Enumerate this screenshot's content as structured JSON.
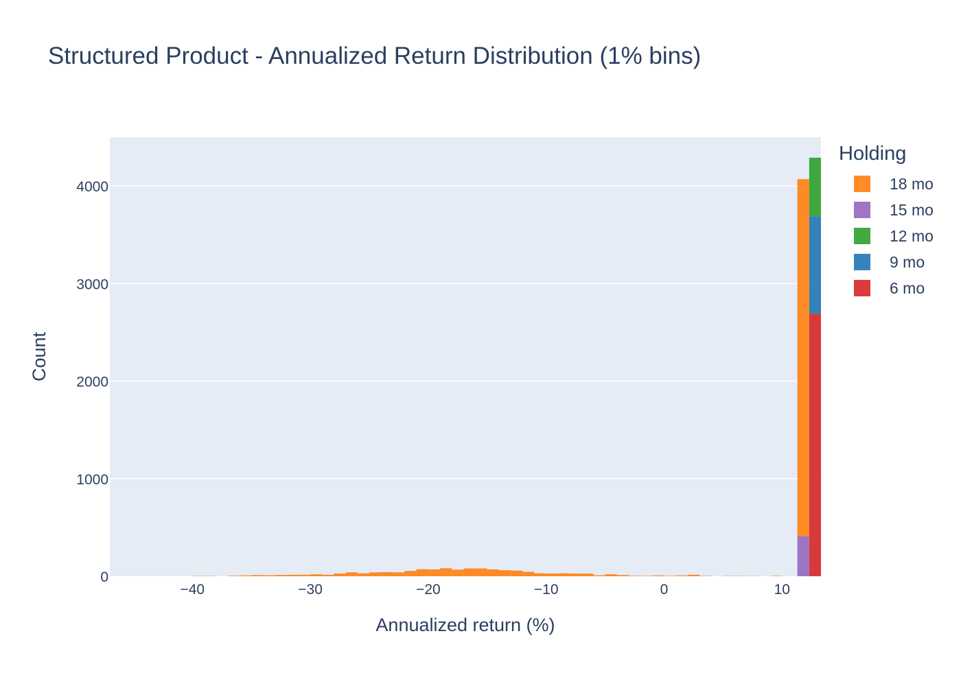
{
  "chart_data": {
    "type": "bar",
    "title": "Structured Product - Annualized Return Distribution (1% bins)",
    "xlabel": "Annualized return (%)",
    "ylabel": "Count",
    "xlim": [
      -47,
      13.3
    ],
    "ylim": [
      0,
      4500
    ],
    "x_ticks": [
      "−40",
      "−30",
      "−20",
      "−10",
      "0",
      "10"
    ],
    "x_tick_values": [
      -40,
      -30,
      -20,
      -10,
      0,
      10
    ],
    "y_ticks": [
      "0",
      "1000",
      "2000",
      "3000",
      "4000"
    ],
    "y_tick_values": [
      0,
      1000,
      2000,
      3000,
      4000
    ],
    "grid": true,
    "barmode": "stack",
    "bin_width": 1,
    "legend": {
      "title": "Holding",
      "position": "right"
    },
    "series": [
      {
        "name": "18 mo",
        "color": "#ff7f0e",
        "bins": [
          {
            "x0": -40,
            "count": 3
          },
          {
            "x0": -39,
            "count": 3
          },
          {
            "x0": -37,
            "count": 5
          },
          {
            "x0": -36,
            "count": 8
          },
          {
            "x0": -35,
            "count": 12
          },
          {
            "x0": -34,
            "count": 10
          },
          {
            "x0": -33,
            "count": 13
          },
          {
            "x0": -32,
            "count": 15
          },
          {
            "x0": -31,
            "count": 15
          },
          {
            "x0": -30,
            "count": 20
          },
          {
            "x0": -29,
            "count": 15
          },
          {
            "x0": -28,
            "count": 28
          },
          {
            "x0": -27,
            "count": 40
          },
          {
            "x0": -26,
            "count": 30
          },
          {
            "x0": -25,
            "count": 40
          },
          {
            "x0": -24,
            "count": 42
          },
          {
            "x0": -23,
            "count": 40
          },
          {
            "x0": -22,
            "count": 55
          },
          {
            "x0": -21,
            "count": 72
          },
          {
            "x0": -20,
            "count": 70
          },
          {
            "x0": -19,
            "count": 82
          },
          {
            "x0": -18,
            "count": 68
          },
          {
            "x0": -17,
            "count": 80
          },
          {
            "x0": -16,
            "count": 80
          },
          {
            "x0": -15,
            "count": 70
          },
          {
            "x0": -14,
            "count": 62
          },
          {
            "x0": -13,
            "count": 58
          },
          {
            "x0": -12,
            "count": 45
          },
          {
            "x0": -11,
            "count": 30
          },
          {
            "x0": -10,
            "count": 28
          },
          {
            "x0": -9,
            "count": 30
          },
          {
            "x0": -8,
            "count": 28
          },
          {
            "x0": -7,
            "count": 27
          },
          {
            "x0": -6,
            "count": 10
          },
          {
            "x0": -5,
            "count": 20
          },
          {
            "x0": -4,
            "count": 12
          },
          {
            "x0": -3,
            "count": 5
          },
          {
            "x0": -2,
            "count": 4
          },
          {
            "x0": -1,
            "count": 8
          },
          {
            "x0": 0,
            "count": 4
          },
          {
            "x0": 1,
            "count": 8
          },
          {
            "x0": 2,
            "count": 15
          },
          {
            "x0": 3,
            "count": 4
          },
          {
            "x0": 5,
            "count": 3
          },
          {
            "x0": 6,
            "count": 3
          },
          {
            "x0": 7,
            "count": 2
          },
          {
            "x0": 9,
            "count": 4
          },
          {
            "x0": 11.3,
            "count": 3660
          }
        ]
      },
      {
        "name": "15 mo",
        "color": "#9467bd",
        "bins": [
          {
            "x0": 11.3,
            "count": 410
          }
        ]
      },
      {
        "name": "12 mo",
        "color": "#2ca02c",
        "bins": [
          {
            "x0": 12.3,
            "count": 600
          }
        ]
      },
      {
        "name": "9 mo",
        "color": "#1f77b4",
        "bins": [
          {
            "x0": 12.3,
            "count": 1000
          }
        ]
      },
      {
        "name": "6 mo",
        "color": "#d62728",
        "bins": [
          {
            "x0": 12.3,
            "count": 2690
          }
        ]
      }
    ],
    "stack_order": [
      "6 mo",
      "9 mo",
      "12 mo",
      "15 mo",
      "18 mo"
    ]
  }
}
